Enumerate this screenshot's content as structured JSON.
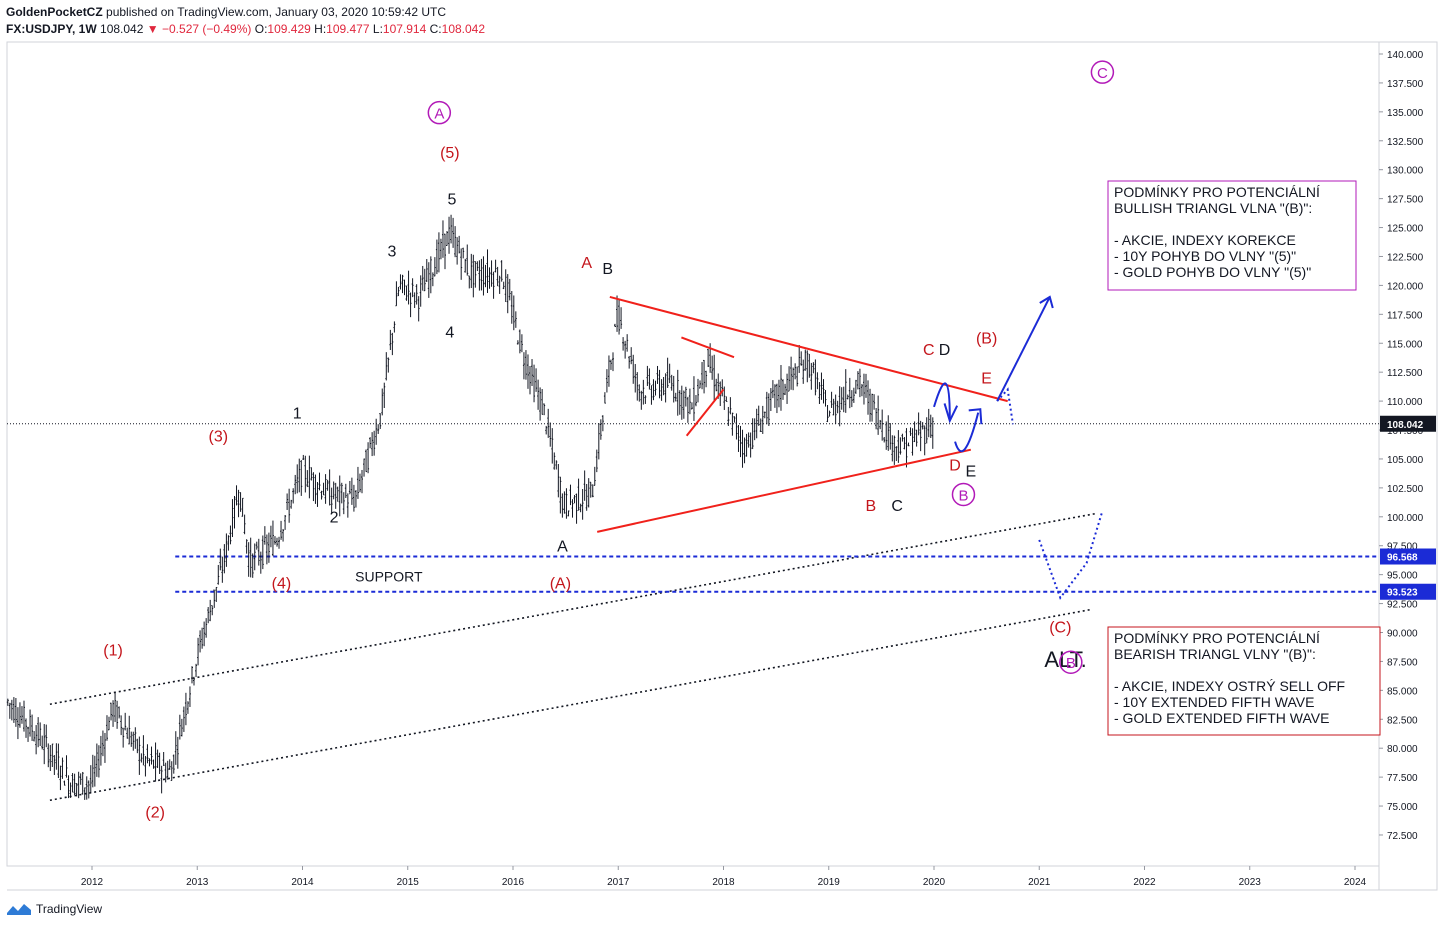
{
  "header": {
    "author": "GoldenPocketCZ",
    "published": "published on TradingView.com, January 03, 2020 10:59:42 UTC",
    "symbol": "FX:USDJPY, 1W",
    "last": "108.042",
    "change_arrow": "▼",
    "change": "−0.527 (−0.49%)",
    "o_label": "O:",
    "o": "109.429",
    "h_label": "H:",
    "h": "109.477",
    "l_label": "L:",
    "l": "107.914",
    "c_label": "C:",
    "c": "108.042"
  },
  "footer": {
    "brand": "TradingView",
    "logo_icon": "tradingview-logo-icon"
  },
  "colors": {
    "wave_red": "#c4161c",
    "wave_purple": "#b21ab8",
    "triangle_red": "#f0211b",
    "support_blue": "#1b2bd6",
    "arrow_blue": "#1b2bd6",
    "candles": "#131722",
    "price_tag": "#131722"
  },
  "chart_data": {
    "type": "candlestick",
    "title": "",
    "xlabel": "",
    "ylabel": "",
    "ylim": [
      70.0,
      142.0
    ],
    "xlim": [
      "2011-02",
      "2024-08"
    ],
    "grid": false,
    "x_ticks": [
      "2012",
      "2013",
      "2014",
      "2015",
      "2016",
      "2017",
      "2018",
      "2019",
      "2020",
      "2021",
      "2022",
      "2023",
      "2024"
    ],
    "y_ticks": [
      "140.000",
      "137.500",
      "135.000",
      "132.500",
      "130.000",
      "127.500",
      "125.000",
      "122.500",
      "120.000",
      "117.500",
      "115.000",
      "112.500",
      "110.000",
      "107.500",
      "105.000",
      "102.500",
      "100.000",
      "97.500",
      "95.000",
      "92.500",
      "90.000",
      "87.500",
      "85.000",
      "82.500",
      "80.000",
      "77.500",
      "75.000",
      "72.500"
    ],
    "price_path": [
      [
        2011.2,
        84.0
      ],
      [
        2011.5,
        81.0
      ],
      [
        2011.8,
        77.0
      ],
      [
        2012.0,
        77.0
      ],
      [
        2012.2,
        83.5
      ],
      [
        2012.5,
        79.0
      ],
      [
        2012.75,
        78.0
      ],
      [
        2013.0,
        88.0
      ],
      [
        2013.25,
        96.0
      ],
      [
        2013.4,
        102.5
      ],
      [
        2013.5,
        96.0
      ],
      [
        2013.75,
        98.0
      ],
      [
        2014.0,
        104.0
      ],
      [
        2014.25,
        102.0
      ],
      [
        2014.5,
        101.5
      ],
      [
        2014.75,
        109.0
      ],
      [
        2014.92,
        120.0
      ],
      [
        2015.1,
        119.0
      ],
      [
        2015.4,
        124.5
      ],
      [
        2015.6,
        121.0
      ],
      [
        2015.9,
        121.0
      ],
      [
        2016.1,
        114.0
      ],
      [
        2016.3,
        109.0
      ],
      [
        2016.48,
        101.0
      ],
      [
        2016.75,
        102.0
      ],
      [
        2016.92,
        113.0
      ],
      [
        2017.0,
        117.5
      ],
      [
        2017.2,
        111.0
      ],
      [
        2017.5,
        111.5
      ],
      [
        2017.7,
        109.5
      ],
      [
        2017.85,
        113.5
      ],
      [
        2018.0,
        110.0
      ],
      [
        2018.2,
        106.0
      ],
      [
        2018.5,
        110.5
      ],
      [
        2018.8,
        113.5
      ],
      [
        2019.0,
        109.0
      ],
      [
        2019.2,
        111.0
      ],
      [
        2019.3,
        111.5
      ],
      [
        2019.6,
        106.5
      ],
      [
        2019.7,
        106.0
      ],
      [
        2020.0,
        108.042
      ]
    ],
    "last_price": {
      "value": 108.042,
      "label": "108.042"
    },
    "support_lines": [
      {
        "value": 96.568,
        "label": "96.568",
        "x_start": 2013.0,
        "text": ""
      },
      {
        "value": 93.523,
        "label": "93.523",
        "x_start": 2013.0,
        "text": "SUPPORT"
      }
    ],
    "triangle_lines": [
      {
        "from": [
          2016.92,
          119.0
        ],
        "to": [
          2020.7,
          110.0
        ]
      },
      {
        "from": [
          2016.8,
          98.7
        ],
        "to": [
          2020.35,
          105.8
        ]
      }
    ],
    "channel_lines": [
      {
        "from": [
          2011.6,
          83.8
        ],
        "to": [
          2021.55,
          100.3
        ]
      },
      {
        "from": [
          2011.6,
          75.5
        ],
        "to": [
          2021.5,
          92.0
        ]
      }
    ],
    "wave_labels": [
      {
        "text": "(1)",
        "x": 2012.2,
        "y": 88.0,
        "color": "red"
      },
      {
        "text": "(2)",
        "x": 2012.6,
        "y": 74.0,
        "color": "red"
      },
      {
        "text": "(3)",
        "x": 2013.2,
        "y": 106.5,
        "color": "red"
      },
      {
        "text": "(4)",
        "x": 2013.8,
        "y": 93.8,
        "color": "red"
      },
      {
        "text": "(5)",
        "x": 2015.4,
        "y": 131.0,
        "color": "red"
      },
      {
        "text": "A",
        "x": 2015.3,
        "y": 134.5,
        "color": "purple",
        "circled": true
      },
      {
        "text": "1",
        "x": 2013.95,
        "y": 108.5,
        "color": "black"
      },
      {
        "text": "2",
        "x": 2014.3,
        "y": 99.5,
        "color": "black"
      },
      {
        "text": "3",
        "x": 2014.85,
        "y": 122.5,
        "color": "black"
      },
      {
        "text": "4",
        "x": 2015.4,
        "y": 115.5,
        "color": "black"
      },
      {
        "text": "5",
        "x": 2015.42,
        "y": 127.0,
        "color": "black"
      },
      {
        "text": "A",
        "x": 2016.7,
        "y": 121.5,
        "color": "red"
      },
      {
        "text": "B",
        "x": 2016.9,
        "y": 121.0,
        "color": "black"
      },
      {
        "text": "A",
        "x": 2016.47,
        "y": 97.0,
        "color": "black"
      },
      {
        "text": "(A)",
        "x": 2016.45,
        "y": 93.8,
        "color": "red"
      },
      {
        "text": "C",
        "x": 2019.95,
        "y": 114.0,
        "color": "red"
      },
      {
        "text": "D",
        "x": 2020.1,
        "y": 114.0,
        "color": "black"
      },
      {
        "text": "(B)",
        "x": 2020.5,
        "y": 115.0,
        "color": "red"
      },
      {
        "text": "E",
        "x": 2020.5,
        "y": 111.5,
        "color": "red"
      },
      {
        "text": "D",
        "x": 2020.2,
        "y": 104.0,
        "color": "red"
      },
      {
        "text": "E",
        "x": 2020.35,
        "y": 103.5,
        "color": "black"
      },
      {
        "text": "B",
        "x": 2020.28,
        "y": 101.5,
        "color": "purple",
        "circled": true
      },
      {
        "text": "B",
        "x": 2019.4,
        "y": 100.5,
        "color": "red"
      },
      {
        "text": "C",
        "x": 2019.65,
        "y": 100.5,
        "color": "black"
      },
      {
        "text": "(C)",
        "x": 2021.2,
        "y": 90.0,
        "color": "red"
      },
      {
        "text": "ALT.",
        "x": 2021.25,
        "y": 87.0,
        "color": "black"
      },
      {
        "text": "B",
        "x": 2021.3,
        "y": 87.0,
        "color": "purple",
        "circled": true
      },
      {
        "text": "C",
        "x": 2021.6,
        "y": 138.0,
        "color": "purple",
        "circled": true
      }
    ],
    "projections": [
      {
        "style": "solid",
        "points": [
          [
            2020.6,
            110.0
          ],
          [
            2021.1,
            119.0
          ]
        ]
      },
      {
        "style": "dotted",
        "points": [
          [
            2020.6,
            110.0
          ],
          [
            2020.7,
            111.0
          ],
          [
            2020.75,
            108.0
          ]
        ]
      },
      {
        "style": "dotted",
        "points": [
          [
            2021.0,
            98.0
          ],
          [
            2021.2,
            93.0
          ],
          [
            2021.45,
            96.0
          ],
          [
            2021.6,
            100.5
          ]
        ]
      }
    ],
    "annotations": [
      {
        "color": "purple",
        "lines": [
          "PODMÍNKY PRO POTENCIÁLNÍ",
          "BULLISH TRIANGL VLNA \"(B)\":",
          "",
          "- AKCIE, INDEXY KOREKCE",
          "- 10Y POHYB DO VLNY \"(5)\"",
          "- GOLD POHYB DO VLNY \"(5)\""
        ]
      },
      {
        "color": "red",
        "lines": [
          "PODMÍNKY PRO POTENCIÁLNÍ",
          "BEARISH TRIANGL VLNY \"(B)\":",
          "",
          "- AKCIE, INDEXY OSTRÝ SELL OFF",
          "- 10Y EXTENDED FIFTH WAVE",
          "- GOLD EXTENDED FIFTH WAVE"
        ]
      }
    ]
  }
}
